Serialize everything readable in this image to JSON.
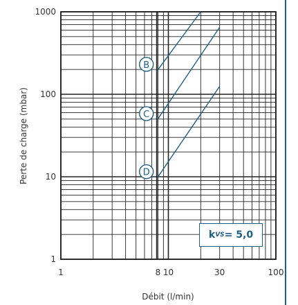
{
  "chart_data": {
    "type": "line",
    "xscale": "log",
    "yscale": "log",
    "xlim": [
      1,
      100
    ],
    "ylim": [
      1,
      1000
    ],
    "xlabel": "Débit (l/min)",
    "ylabel": "Perte de charge (mbar)",
    "x_ticks": [
      "1",
      "8",
      "10",
      "30",
      "100"
    ],
    "y_ticks": [
      "1",
      "10",
      "100",
      "1000"
    ],
    "grid": true,
    "series": [
      {
        "name": "B",
        "x": [
          7.8,
          20
        ],
        "y": [
          190,
          1000
        ]
      },
      {
        "name": "C",
        "x": [
          7.8,
          30
        ],
        "y": [
          48,
          650
        ]
      },
      {
        "name": "D",
        "x": [
          7.8,
          30
        ],
        "y": [
          9.5,
          125
        ]
      }
    ],
    "annotation": {
      "prefix": "k",
      "subscript": "VS",
      "value": " = 5,0"
    }
  },
  "colors": {
    "curve": "#1f5f87",
    "grid": "#222222"
  }
}
